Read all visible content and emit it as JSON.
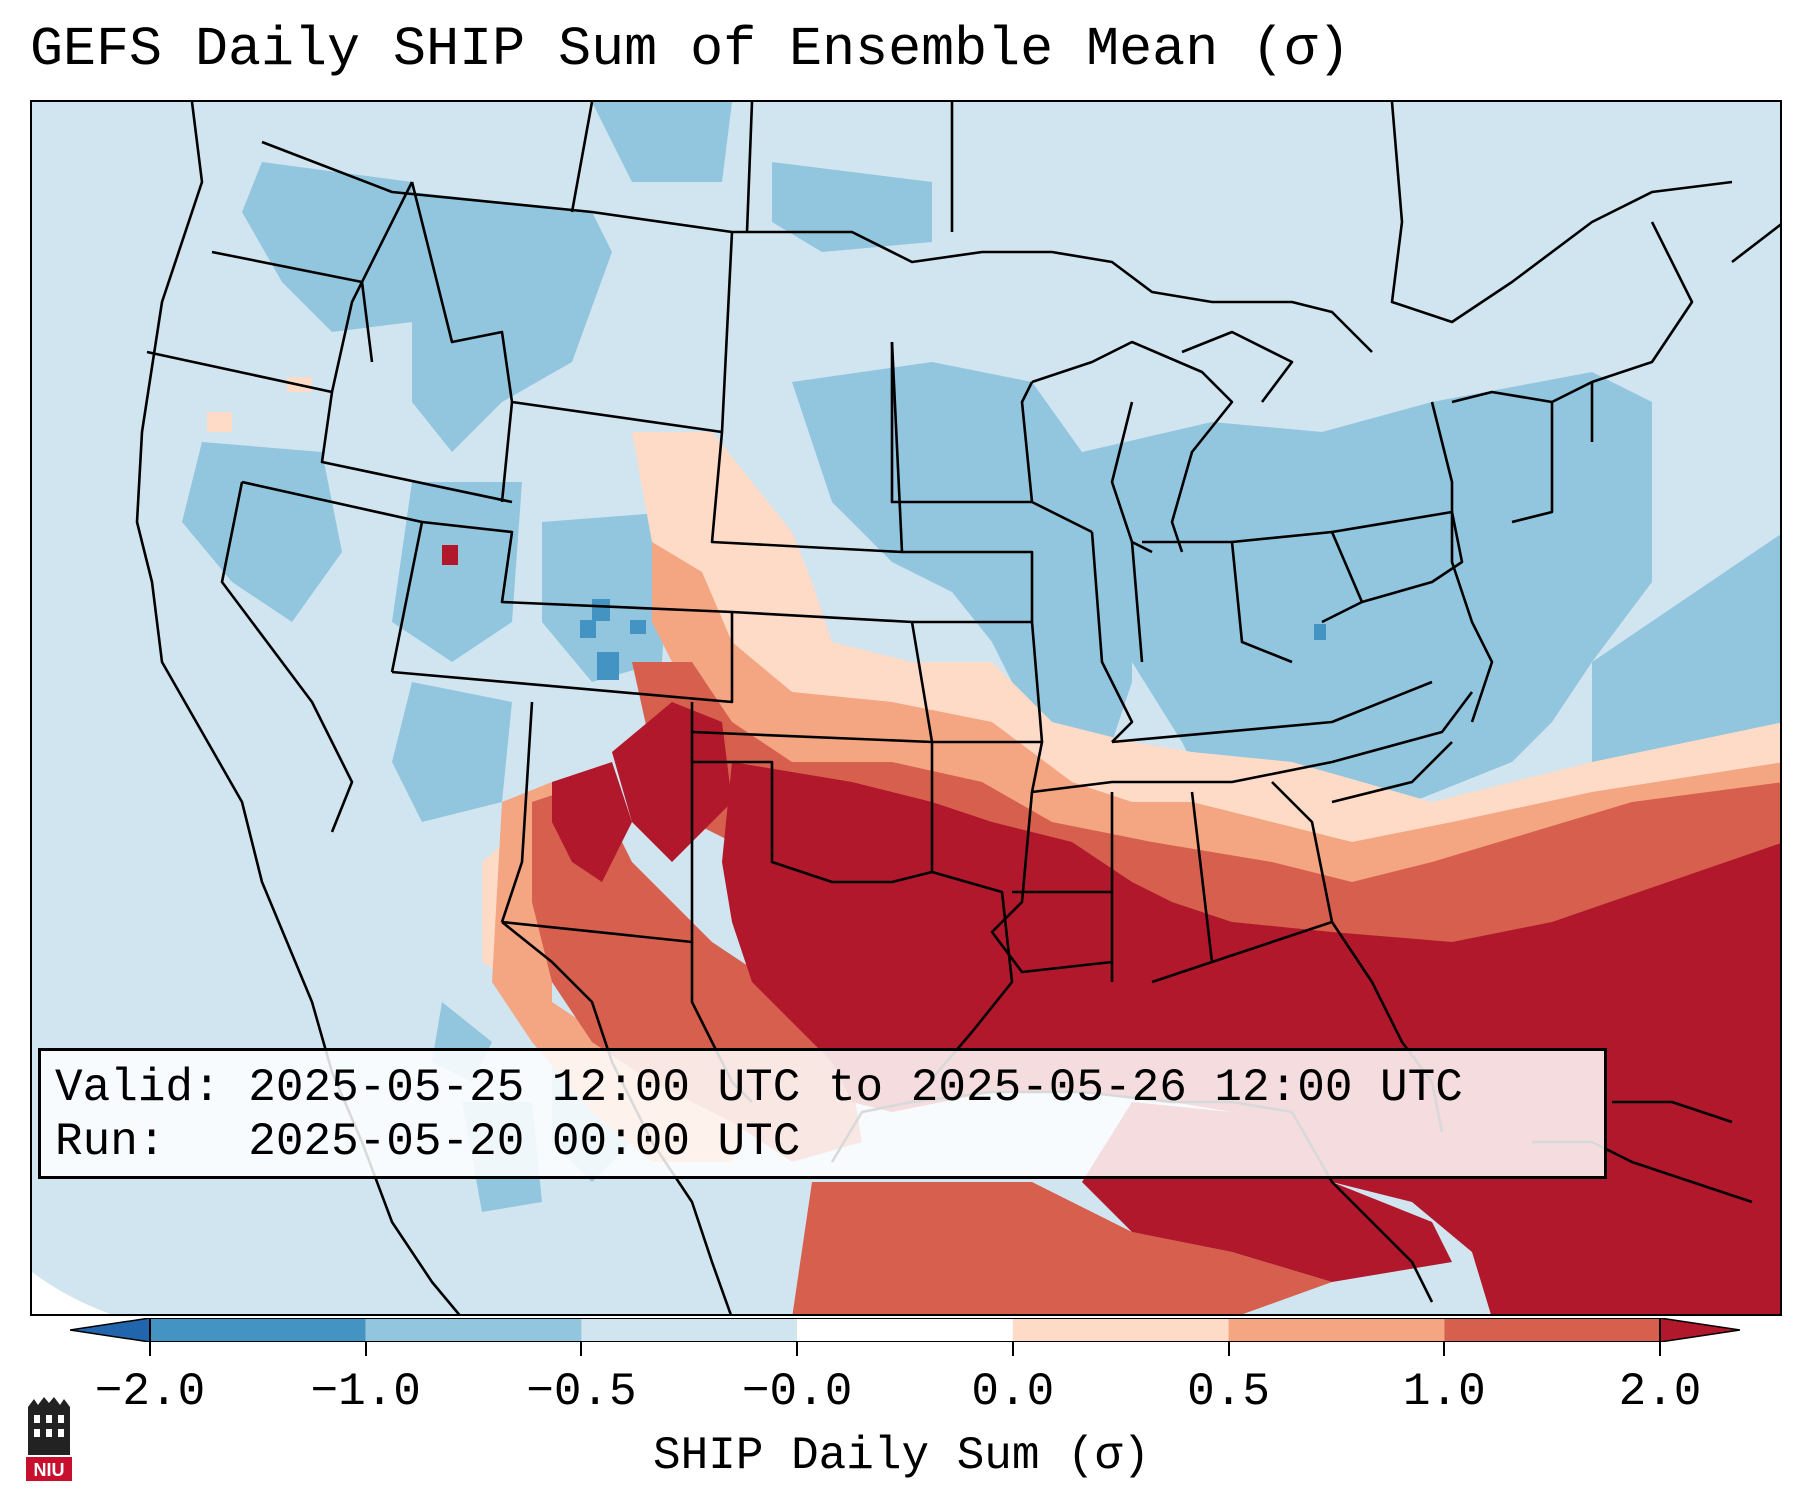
{
  "title": "GEFS Daily SHIP Sum of Ensemble Mean (σ)",
  "map": {
    "region": "Contiguous United States",
    "colors": {
      "ocean_land_base": "#d1e5f0",
      "minus_1_to_minus_05": "#92c5de",
      "minus_2_to_minus_1": "#4393c3",
      "plus_0_to_05": "#fddbc7",
      "plus_05_to_1": "#f4a582",
      "plus_1_to_2": "#d6604d",
      "above_2": "#b2182b",
      "outline": "#000000"
    }
  },
  "info": {
    "valid_label": "Valid:",
    "valid_value": "2025-05-25 12:00 UTC to 2025-05-26 12:00 UTC",
    "run_label": "Run:",
    "run_value": "2025-05-20 00:00 UTC"
  },
  "colorbar": {
    "ticks": [
      "−2.0",
      "−1.0",
      "−0.5",
      "−0.0",
      "0.0",
      "0.5",
      "1.0",
      "2.0"
    ],
    "label": "SHIP Daily Sum (σ)",
    "bins": [
      "#4393c3",
      "#92c5de",
      "#d1e5f0",
      "#ffffff",
      "#fddbc7",
      "#f4a582",
      "#d6604d"
    ],
    "extend_low": "#2166ac",
    "extend_high": "#b2182b"
  },
  "logo": {
    "text": "NIU",
    "color": "#c8102e"
  }
}
